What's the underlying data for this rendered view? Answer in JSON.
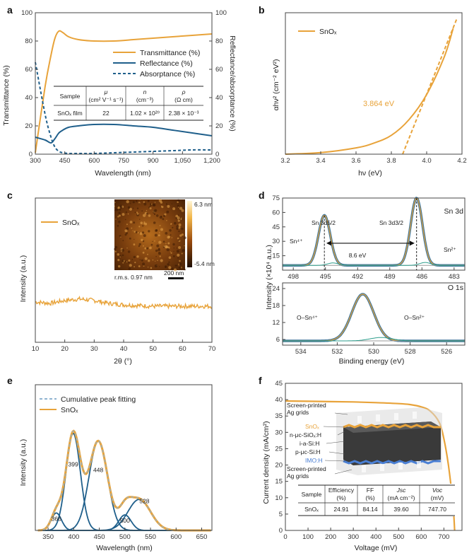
{
  "colors": {
    "orange": "#E8A33A",
    "teal": "#1F5F8B",
    "green": "#2E9E8C",
    "dark": "#222222"
  },
  "panels": {
    "a": {
      "letter": "a",
      "xlabel": "Wavelength (nm)",
      "ylabel_left": "Transmittance (%)",
      "ylabel_right": "Reflectance/absorptance (%)",
      "xticks": [
        "300",
        "450",
        "600",
        "750",
        "900",
        "1,050",
        "1,200"
      ],
      "yticks": [
        "0",
        "20",
        "40",
        "60",
        "80",
        "100"
      ],
      "legend": [
        "Transmittance (%)",
        "Reflectance (%)",
        "Absorptance (%)"
      ],
      "table": {
        "headers": [
          [
            "Sample"
          ],
          [
            "μ",
            "(cm² V⁻¹ s⁻¹)"
          ],
          [
            "n",
            "(cm⁻³)"
          ],
          [
            "ρ",
            "(Ω cm)"
          ]
        ],
        "row": [
          "SnOₓ film",
          "22",
          "1.02 × 10²⁰",
          "2.38 × 10⁻³"
        ]
      }
    },
    "b": {
      "letter": "b",
      "xlabel": "hν (eV)",
      "ylabel": "αhν² (cm⁻² eV²)",
      "xticks": [
        "3.2",
        "3.4",
        "3.6",
        "3.8",
        "4.0",
        "4.2"
      ],
      "legend": "SnOₓ",
      "annotation": "3.864 eV"
    },
    "c": {
      "letter": "c",
      "xlabel": "2θ (°)",
      "ylabel": "Intensity (a.u.)",
      "xticks": [
        "10",
        "20",
        "30",
        "40",
        "50",
        "60",
        "70"
      ],
      "legend": "SnOₓ",
      "afm": {
        "scale_max": "6.3 nm",
        "scale_min": "-5.4 nm",
        "rms": "r.m.s. 0.97 nm",
        "scalebar": "200 nm"
      }
    },
    "d": {
      "letter": "d",
      "xlabel": "Binding energy (eV)",
      "ylabel": "Intensity (×10⁴ a.u.)",
      "top": {
        "title": "Sn 3d",
        "xticks": [
          "498",
          "495",
          "492",
          "489",
          "486",
          "483"
        ],
        "yticks": [
          "15",
          "30",
          "45",
          "60",
          "75"
        ],
        "peak_labels": [
          "Sn 3d5/2",
          "Sn 3d3/2"
        ],
        "split": "8.6 eV",
        "sn4": "Sn⁴⁺",
        "sn2": "Sn²⁺"
      },
      "bottom": {
        "title": "O 1s",
        "xticks": [
          "534",
          "532",
          "530",
          "528",
          "526"
        ],
        "yticks": [
          "6",
          "12",
          "18",
          "24"
        ],
        "labels": [
          "O–Sn⁴⁺",
          "O–Sn²⁺"
        ]
      }
    },
    "e": {
      "letter": "e",
      "xlabel": "Wavelength (nm)",
      "ylabel": "Intensity (a.u.)",
      "xticks": [
        "350",
        "400",
        "450",
        "500",
        "550",
        "600",
        "650"
      ],
      "legend": [
        "Cumulative peak fitting",
        "SnOₓ"
      ],
      "peaks": [
        "366",
        "399",
        "448",
        "500",
        "528"
      ]
    },
    "f": {
      "letter": "f",
      "xlabel": "Voltage (mV)",
      "ylabel": "Current density (mA/cm²)",
      "xticks": [
        "0",
        "100",
        "200",
        "300",
        "400",
        "500",
        "600",
        "700"
      ],
      "yticks": [
        "0",
        "5",
        "10",
        "15",
        "20",
        "25",
        "30",
        "35",
        "40",
        "45"
      ],
      "layers": [
        "Screen-printed",
        "Ag grids",
        "SnOₓ",
        "n-μc-SiOₓ:H",
        "i-a-Si:H",
        "p-μc-Si:H",
        "IMO:H",
        "Screen-printed",
        "Ag grids"
      ],
      "table": {
        "headers": [
          [
            "Sample"
          ],
          [
            "Efficiency",
            "(%)"
          ],
          [
            "FF",
            "(%)"
          ],
          [
            "Jsc",
            "(mA cm⁻²)"
          ],
          [
            "Voc",
            "(mV)"
          ]
        ],
        "row": [
          "SnOₓ",
          "24.91",
          "84.14",
          "39.60",
          "747.70"
        ]
      }
    }
  },
  "chart_data": [
    {
      "id": "a",
      "type": "line",
      "x": [
        300,
        350,
        380,
        400,
        420,
        440,
        470,
        520,
        600,
        700,
        800,
        900,
        1000,
        1100,
        1200
      ],
      "series": [
        {
          "name": "Transmittance (%)",
          "axis": "left",
          "values": [
            1,
            48,
            70,
            82,
            87,
            86,
            83,
            81,
            80,
            80,
            81,
            82,
            83,
            84,
            85
          ]
        },
        {
          "name": "Reflectance (%)",
          "axis": "right",
          "values": [
            12,
            10,
            8,
            11,
            15,
            17,
            19,
            20,
            21,
            21,
            20,
            19,
            17,
            15,
            13
          ]
        },
        {
          "name": "Absorptance (%)",
          "axis": "right",
          "values": [
            65,
            28,
            12,
            5,
            2,
            1,
            0.5,
            0.5,
            0.5,
            1,
            1.5,
            2,
            2.5,
            3,
            3
          ]
        }
      ],
      "xlim": [
        300,
        1200
      ],
      "ylim": [
        0,
        100
      ]
    },
    {
      "id": "b",
      "type": "line",
      "x": [
        3.2,
        3.4,
        3.6,
        3.7,
        3.8,
        3.9,
        4.0,
        4.1,
        4.15
      ],
      "series": [
        {
          "name": "SnOₓ",
          "values": [
            0,
            0.01,
            0.04,
            0.07,
            0.12,
            0.22,
            0.38,
            0.62,
            0.8
          ]
        }
      ],
      "tangent": {
        "x": [
          3.864,
          4.17
        ],
        "values": [
          0,
          0.86
        ]
      },
      "xlim": [
        3.2,
        4.2
      ],
      "ylim": [
        0,
        0.9
      ]
    },
    {
      "id": "c",
      "type": "line",
      "x": [
        10,
        15,
        20,
        25,
        30,
        35,
        40,
        45,
        50,
        55,
        60,
        65,
        70
      ],
      "series": [
        {
          "name": "SnOₓ",
          "values": [
            0.28,
            0.27,
            0.29,
            0.3,
            0.29,
            0.27,
            0.26,
            0.255,
            0.25,
            0.25,
            0.25,
            0.25,
            0.25
          ]
        }
      ],
      "xlim": [
        10,
        70
      ],
      "ylim": [
        0,
        1
      ]
    },
    {
      "id": "d-top",
      "type": "line",
      "title": "Sn 3d",
      "peaks": [
        {
          "center": 495.1,
          "height": 52,
          "width": 0.55
        },
        {
          "center": 486.5,
          "height": 70,
          "width": 0.55
        }
      ],
      "baseline": 5,
      "xlim": [
        499,
        482
      ],
      "ylim": [
        0,
        75
      ]
    },
    {
      "id": "d-bottom",
      "type": "line",
      "title": "O 1s",
      "peaks": [
        {
          "center": 530.6,
          "height": 16.5,
          "width": 0.6
        }
      ],
      "baseline": 5.5,
      "xlim": [
        535,
        525
      ],
      "ylim": [
        4,
        26
      ]
    },
    {
      "id": "e",
      "type": "line",
      "components": [
        {
          "center": 366,
          "height": 0.09,
          "width": 10
        },
        {
          "center": 399,
          "height": 0.5,
          "width": 14
        },
        {
          "center": 448,
          "height": 0.46,
          "width": 18
        },
        {
          "center": 500,
          "height": 0.08,
          "width": 12
        },
        {
          "center": 528,
          "height": 0.16,
          "width": 22
        }
      ],
      "xlim": [
        325,
        670
      ],
      "ylim": [
        0,
        0.75
      ]
    },
    {
      "id": "f",
      "type": "line",
      "x": [
        0,
        100,
        200,
        300,
        400,
        500,
        550,
        600,
        640,
        680,
        700,
        720,
        740,
        747.7
      ],
      "series": [
        {
          "name": "SnOₓ",
          "values": [
            39.6,
            39.5,
            39.4,
            39.3,
            39.1,
            38.8,
            38.5,
            37.8,
            36.5,
            33,
            28,
            20,
            8,
            0
          ]
        }
      ],
      "xlim": [
        0,
        780
      ],
      "ylim": [
        0,
        45
      ]
    }
  ]
}
